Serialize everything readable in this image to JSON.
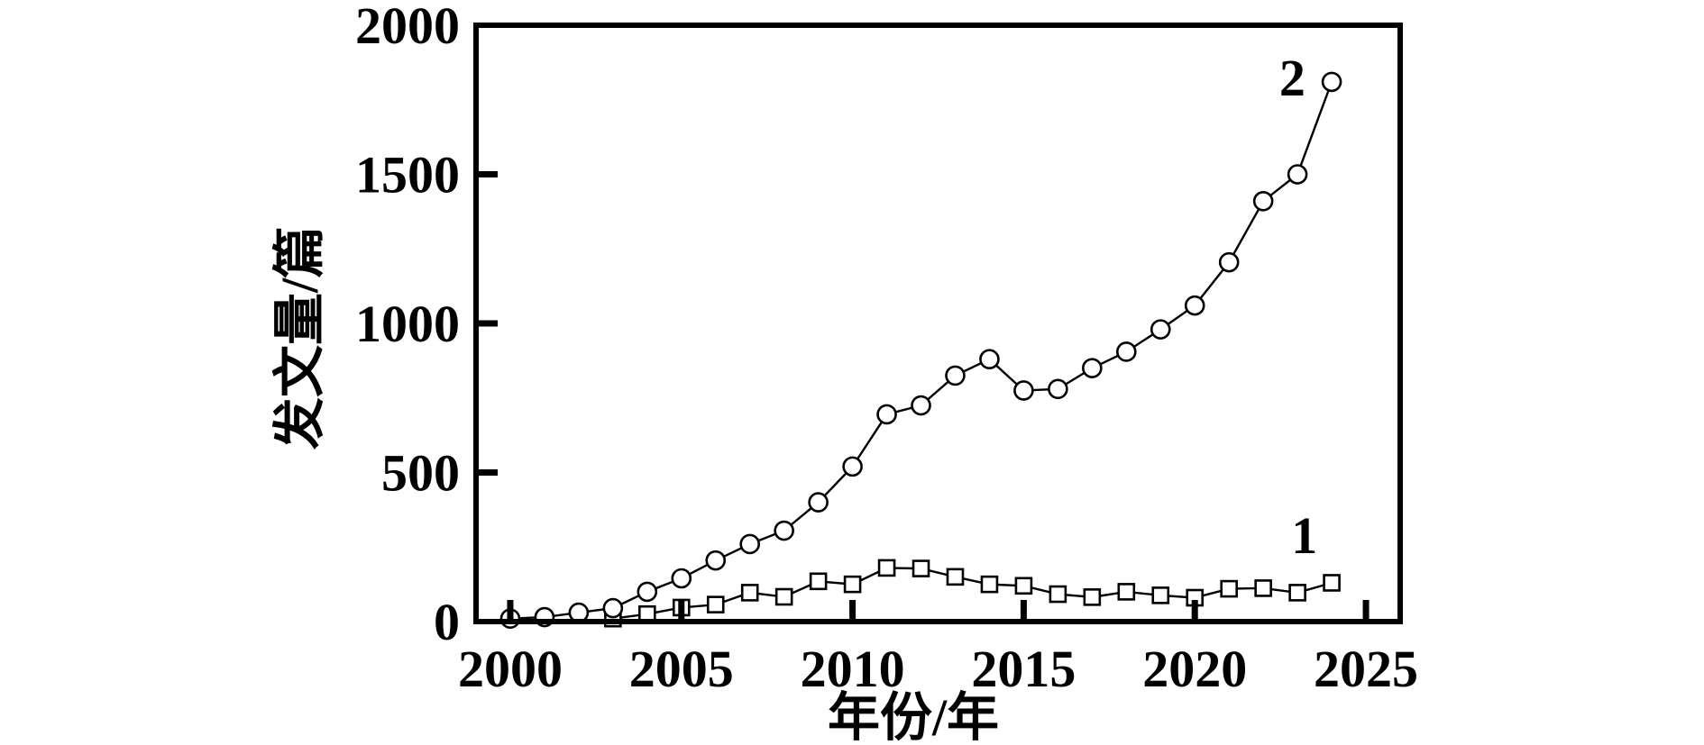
{
  "figure": {
    "background_color": "#ffffff",
    "ink_color": "#000000"
  },
  "chart_data": {
    "type": "line",
    "title": "",
    "xlabel": "年份/年",
    "ylabel": "发文量/篇",
    "xlim": [
      1999,
      2026
    ],
    "ylim": [
      0,
      2000
    ],
    "xticks": [
      2000,
      2005,
      2010,
      2015,
      2020,
      2025
    ],
    "yticks": [
      0,
      500,
      1000,
      1500,
      2000
    ],
    "grid": false,
    "legend_position": "inline-annotations",
    "series": [
      {
        "name": "1",
        "marker": "square",
        "line_color": "#000000",
        "marker_fill": "#ffffff",
        "x": [
          2003,
          2004,
          2005,
          2006,
          2007,
          2008,
          2009,
          2010,
          2011,
          2012,
          2013,
          2014,
          2015,
          2016,
          2017,
          2018,
          2019,
          2020,
          2021,
          2022,
          2023,
          2024
        ],
        "values": [
          10,
          25,
          47,
          57,
          97,
          83,
          135,
          125,
          180,
          178,
          150,
          125,
          120,
          92,
          82,
          100,
          88,
          80,
          110,
          112,
          97,
          130
        ]
      },
      {
        "name": "2",
        "marker": "circle",
        "line_color": "#000000",
        "marker_fill": "#ffffff",
        "x": [
          2000,
          2001,
          2002,
          2003,
          2004,
          2005,
          2006,
          2007,
          2008,
          2009,
          2010,
          2011,
          2012,
          2013,
          2014,
          2015,
          2016,
          2017,
          2018,
          2019,
          2020,
          2021,
          2022,
          2023,
          2024
        ],
        "values": [
          10,
          15,
          30,
          45,
          100,
          145,
          205,
          260,
          305,
          400,
          520,
          695,
          725,
          825,
          880,
          775,
          780,
          850,
          905,
          980,
          1060,
          1205,
          1410,
          1500,
          1810
        ]
      }
    ],
    "annotations": [
      {
        "text": "2",
        "x": 2022.85,
        "y": 1825
      },
      {
        "text": "1",
        "x": 2023.2,
        "y": 290
      }
    ]
  }
}
